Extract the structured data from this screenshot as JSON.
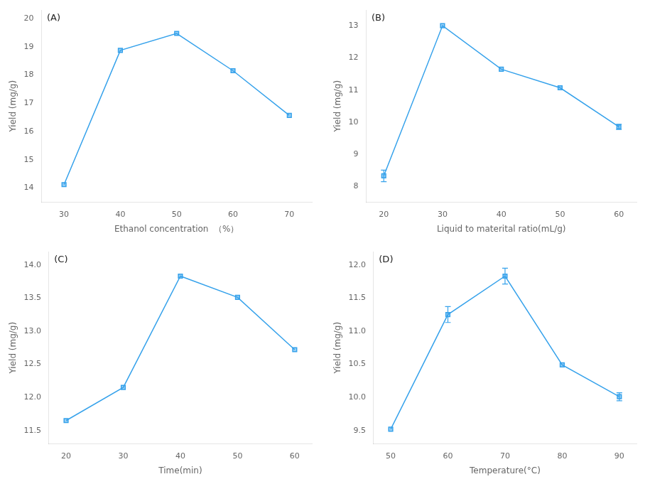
{
  "chart_data": [
    {
      "type": "line",
      "annotation": "(A)",
      "xlabel": "Ethanol concentration  （%）",
      "ylabel": "Yield (mg/g)",
      "x": [
        30,
        40,
        50,
        60,
        70
      ],
      "values": [
        14.12,
        18.87,
        19.47,
        18.15,
        16.57
      ],
      "yerr": [
        0,
        0,
        0,
        0,
        0
      ],
      "marker": "square",
      "grid": false,
      "xlim": [
        26,
        74
      ],
      "xticks": [
        30,
        40,
        50,
        60,
        70
      ],
      "ylim": [
        13.5,
        20.3
      ],
      "yticks": [
        14,
        15,
        16,
        17,
        18,
        19,
        20
      ]
    },
    {
      "type": "line",
      "annotation": "(B)",
      "xlabel": "Liquid to materital ratio(mL/g)",
      "ylabel": "Yield (mg/g)",
      "x": [
        20,
        30,
        40,
        50,
        60
      ],
      "values": [
        8.32,
        13.01,
        11.65,
        11.07,
        9.85
      ],
      "yerr": [
        0.18,
        0,
        0,
        0,
        0.08
      ],
      "marker": "square",
      "grid": false,
      "xlim": [
        17,
        63
      ],
      "xticks": [
        20,
        30,
        40,
        50,
        60
      ],
      "ylim": [
        7.5,
        13.5
      ],
      "yticks": [
        8,
        9,
        10,
        11,
        12,
        13
      ]
    },
    {
      "type": "line",
      "annotation": "(C)",
      "xlabel": "Time(min)",
      "ylabel": "Yield (mg/g)",
      "x": [
        20,
        30,
        40,
        50,
        60
      ],
      "values": [
        11.65,
        12.15,
        13.83,
        13.51,
        12.72
      ],
      "yerr": [
        0,
        0,
        0,
        0,
        0
      ],
      "marker": "square",
      "grid": false,
      "xlim": [
        17,
        63
      ],
      "xticks": [
        20,
        30,
        40,
        50,
        60
      ],
      "ylim": [
        11.3,
        14.2
      ],
      "yticks": [
        11.5,
        {
          "value": 12,
          "label": "12.0"
        },
        12.5,
        {
          "value": 13,
          "label": "13.0"
        },
        13.5,
        {
          "value": 14,
          "label": "14.0"
        }
      ]
    },
    {
      "type": "line",
      "annotation": "(D)",
      "xlabel": "Temperature(°C)",
      "ylabel": "Yield (mg/g)",
      "x": [
        50,
        60,
        70,
        80,
        90
      ],
      "values": [
        9.52,
        11.25,
        11.83,
        10.49,
        10.01
      ],
      "yerr": [
        0,
        0.12,
        0.12,
        0,
        0.06
      ],
      "marker": "square",
      "grid": false,
      "xlim": [
        47,
        93
      ],
      "xticks": [
        50,
        60,
        70,
        80,
        90
      ],
      "ylim": [
        9.3,
        12.2
      ],
      "yticks": [
        9.5,
        {
          "value": 10,
          "label": "10.0"
        },
        10.5,
        {
          "value": 11,
          "label": "11.0"
        },
        11.5,
        {
          "value": 12,
          "label": "12.0"
        }
      ]
    }
  ]
}
